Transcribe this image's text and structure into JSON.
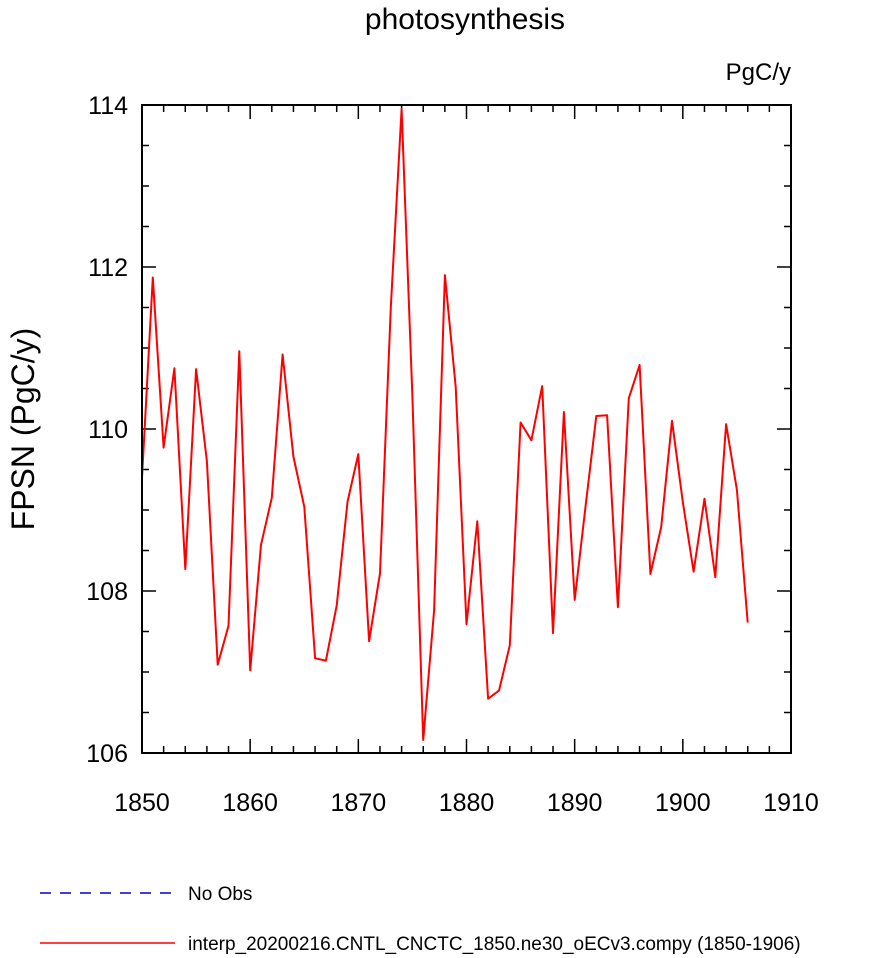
{
  "chart_data": {
    "type": "line",
    "title": "photosynthesis",
    "units_label": "PgC/y",
    "ylabel": "FPSN  (PgC/y)",
    "xlabel": "",
    "xlim": [
      1850,
      1910
    ],
    "ylim": [
      106,
      114
    ],
    "x_ticks": [
      1850,
      1860,
      1870,
      1880,
      1890,
      1900,
      1910
    ],
    "y_ticks": [
      106,
      108,
      110,
      112,
      114
    ],
    "grid": false,
    "legend_position": "bottom-left",
    "series": [
      {
        "name": "interp_20200216.CNTL_CNCTC_1850.ne30_oECv3.compy (1850-1906)",
        "color": "#ff0000",
        "dash": "solid",
        "x": [
          1850,
          1851,
          1852,
          1853,
          1854,
          1855,
          1856,
          1857,
          1858,
          1859,
          1860,
          1861,
          1862,
          1863,
          1864,
          1865,
          1866,
          1867,
          1868,
          1869,
          1870,
          1871,
          1872,
          1873,
          1874,
          1875,
          1876,
          1877,
          1878,
          1879,
          1880,
          1881,
          1882,
          1883,
          1884,
          1885,
          1886,
          1887,
          1888,
          1889,
          1890,
          1891,
          1892,
          1893,
          1894,
          1895,
          1896,
          1897,
          1898,
          1899,
          1900,
          1901,
          1902,
          1903,
          1904,
          1905,
          1906
        ],
        "y": [
          109.4,
          111.87,
          109.77,
          110.75,
          108.27,
          110.74,
          109.6,
          107.09,
          107.57,
          110.96,
          107.02,
          108.57,
          109.15,
          110.92,
          109.66,
          109.04,
          107.17,
          107.14,
          107.82,
          109.1,
          109.69,
          107.38,
          108.22,
          111.5,
          113.95,
          110.4,
          106.16,
          107.76,
          111.9,
          110.52,
          107.59,
          108.86,
          106.67,
          106.77,
          107.33,
          110.08,
          109.86,
          110.53,
          107.48,
          110.21,
          107.89,
          109.04,
          110.16,
          110.17,
          107.8,
          110.38,
          110.79,
          108.21,
          108.79,
          110.1,
          109.1,
          108.24,
          109.14,
          108.17,
          110.06,
          109.25,
          107.61
        ]
      },
      {
        "name": "No Obs",
        "color": "#0000cc",
        "dash": "dashed",
        "x": [],
        "y": []
      }
    ]
  }
}
